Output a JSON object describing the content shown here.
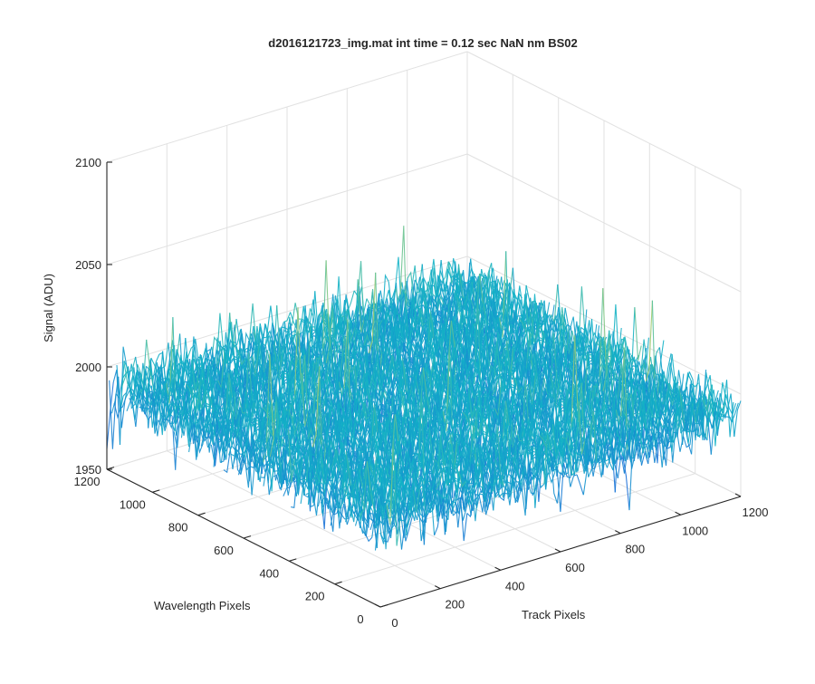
{
  "chart_data": {
    "type": "surface",
    "title": "d2016121723_img.mat int time = 0.12 sec  NaN nm BS02",
    "xlabel": "Track Pixels",
    "ylabel": "Wavelength Pixels",
    "zlabel": "Signal (ADU)",
    "xlim": [
      0,
      1200
    ],
    "ylim": [
      0,
      1200
    ],
    "zlim": [
      1950,
      2100
    ],
    "xticks": [
      "0",
      "200",
      "400",
      "600",
      "800",
      "1000",
      "1200"
    ],
    "yticks": [
      "0",
      "200",
      "400",
      "600",
      "800",
      "1000",
      "1200"
    ],
    "zticks": [
      "1950",
      "2000",
      "2050",
      "2100"
    ],
    "grid": true,
    "colormap": "parula",
    "surface": {
      "mean": 1990,
      "typical_min": 1975,
      "typical_max": 2015,
      "observed_min": 1960,
      "observed_max": 2093,
      "noise": "random per-pixel"
    },
    "colors": {
      "grid": "#e1e1e1",
      "axis": "#262626",
      "low": "#1a6fd8",
      "mid": "#12b3c6",
      "high": "#c8d35a"
    }
  }
}
